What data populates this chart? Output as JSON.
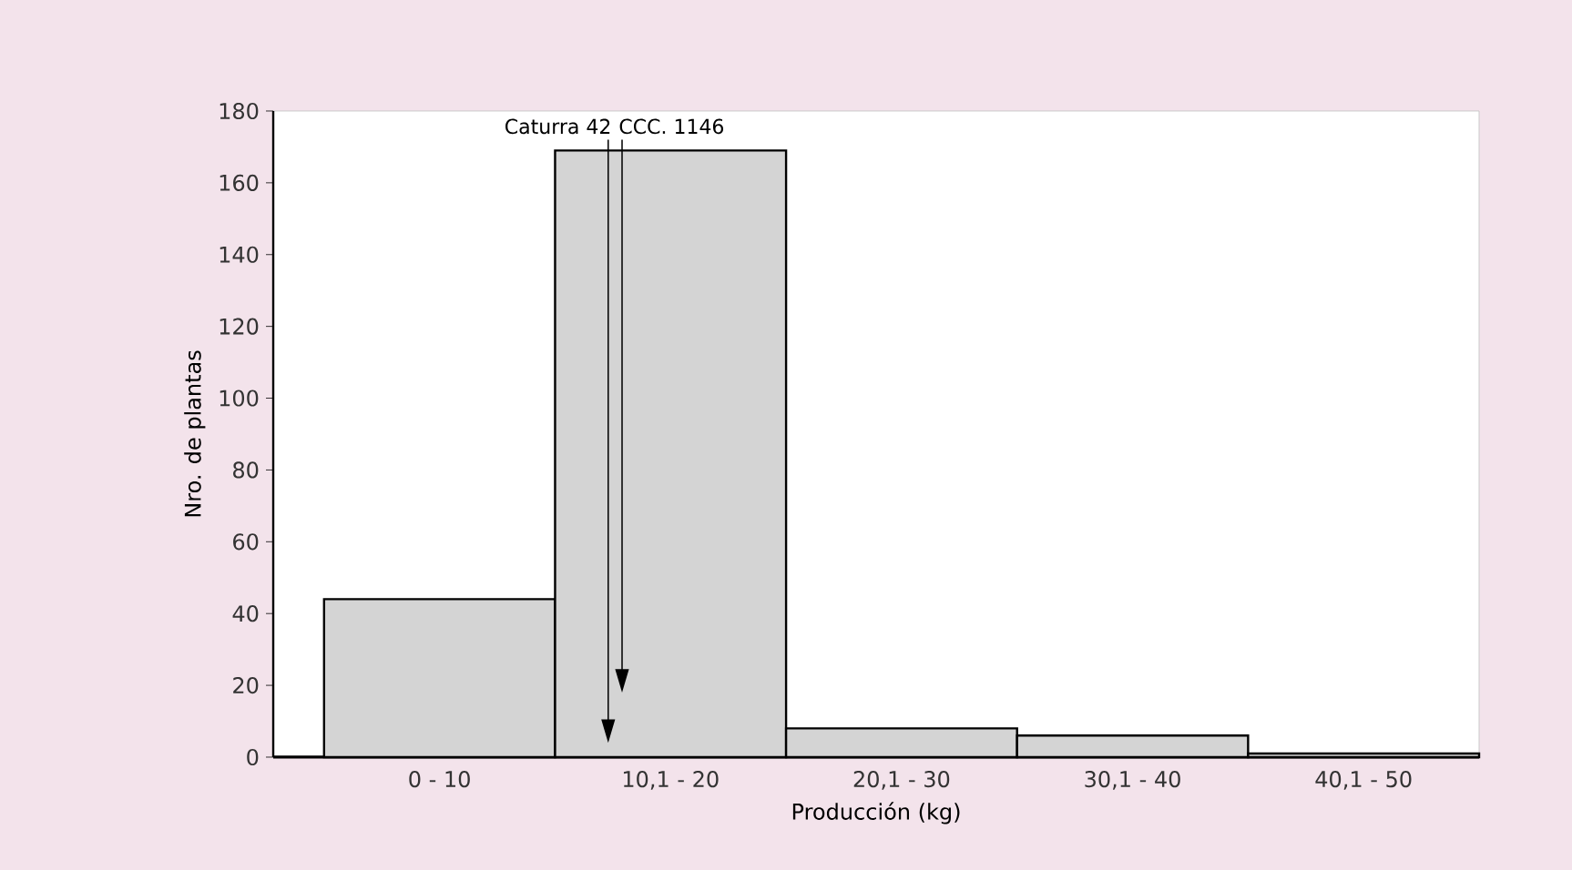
{
  "chart_data": {
    "type": "bar",
    "xlabel": "Producción (kg)",
    "ylabel": "Nro. de plantas",
    "categories": [
      "0 - 10",
      "10,1 - 20",
      "20,1 - 30",
      "30,1 - 40",
      "40,1 - 50"
    ],
    "values": [
      44,
      169,
      8,
      6,
      1
    ],
    "color": "#d4d4d4",
    "ylim": [
      0,
      180
    ],
    "yticks": [
      0,
      20,
      40,
      60,
      80,
      100,
      120,
      140,
      160,
      180
    ],
    "annotations": [
      "Caturra 42",
      "CCC. 1146"
    ]
  }
}
